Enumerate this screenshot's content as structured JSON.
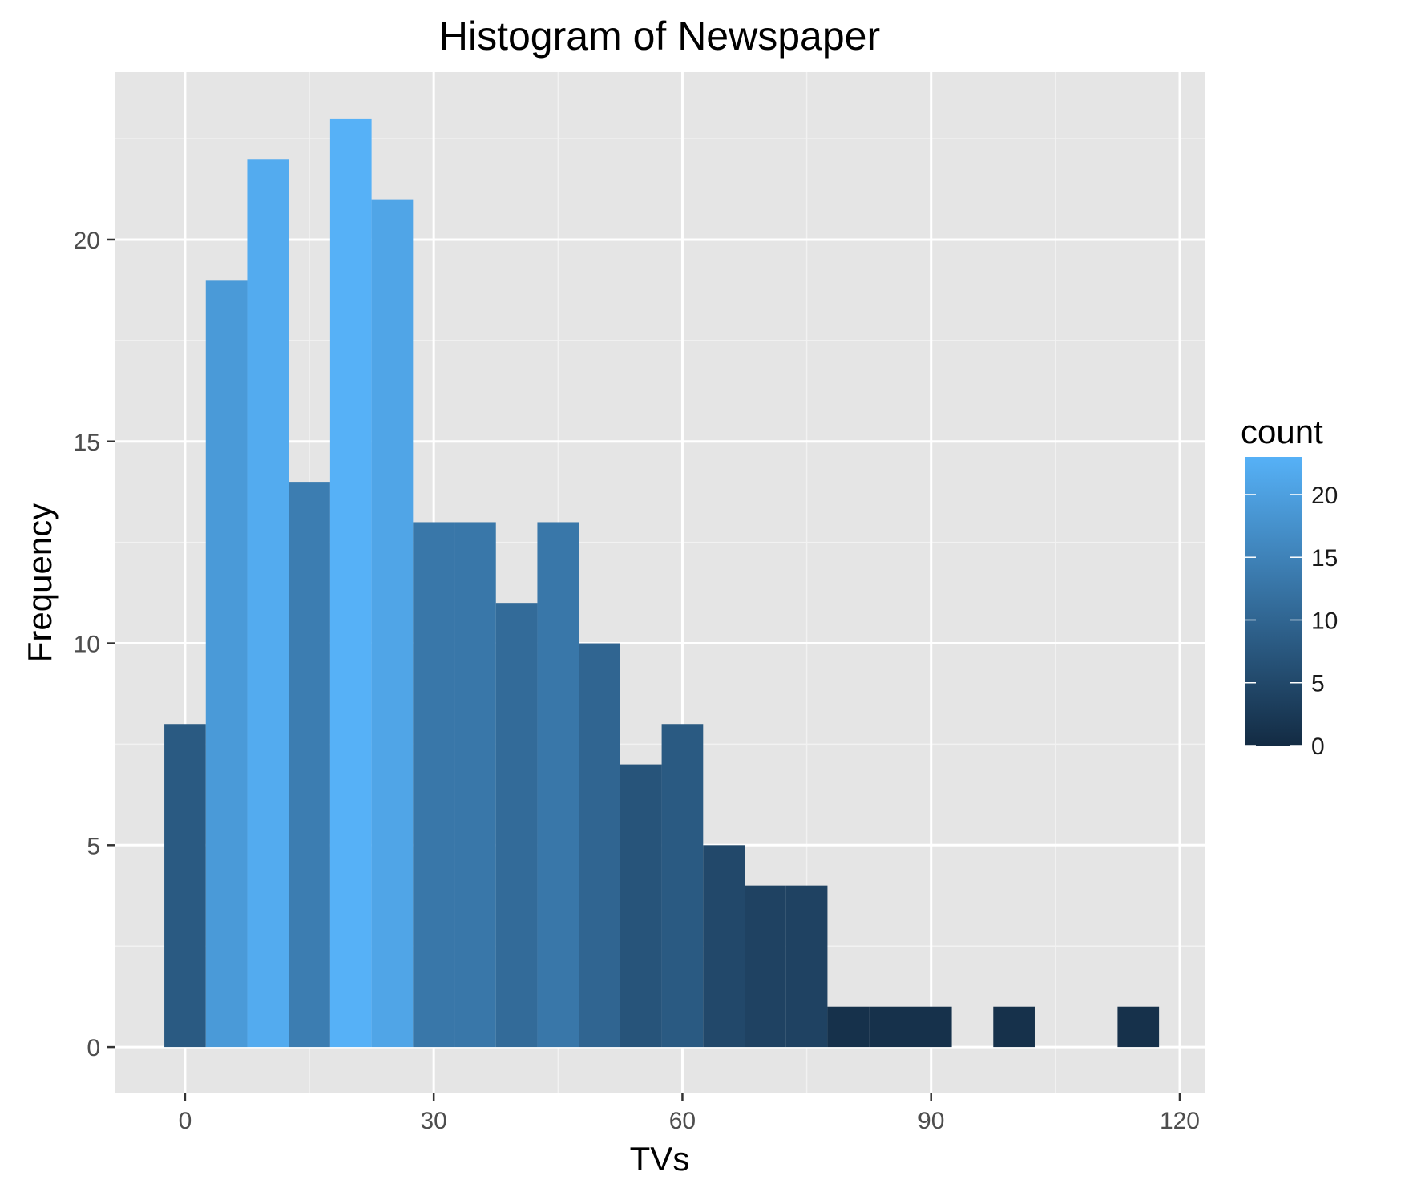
{
  "chart_data": {
    "type": "bar",
    "title": "Histogram of Newspaper",
    "xlabel": "TVs",
    "ylabel": "Frequency",
    "bin_width": 5,
    "bins": [
      {
        "x": 0,
        "count": 8
      },
      {
        "x": 5,
        "count": 19
      },
      {
        "x": 10,
        "count": 22
      },
      {
        "x": 15,
        "count": 14
      },
      {
        "x": 20,
        "count": 23
      },
      {
        "x": 25,
        "count": 21
      },
      {
        "x": 30,
        "count": 13
      },
      {
        "x": 35,
        "count": 13
      },
      {
        "x": 40,
        "count": 11
      },
      {
        "x": 45,
        "count": 13
      },
      {
        "x": 50,
        "count": 10
      },
      {
        "x": 55,
        "count": 7
      },
      {
        "x": 60,
        "count": 8
      },
      {
        "x": 65,
        "count": 5
      },
      {
        "x": 70,
        "count": 4
      },
      {
        "x": 75,
        "count": 4
      },
      {
        "x": 80,
        "count": 1
      },
      {
        "x": 85,
        "count": 1
      },
      {
        "x": 90,
        "count": 1
      },
      {
        "x": 95,
        "count": 0
      },
      {
        "x": 100,
        "count": 1
      },
      {
        "x": 105,
        "count": 0
      },
      {
        "x": 110,
        "count": 0
      },
      {
        "x": 115,
        "count": 1
      }
    ],
    "xlim": [
      -8.5,
      123
    ],
    "ylim": [
      -1.15,
      24.15
    ],
    "x_ticks": [
      0,
      30,
      60,
      90,
      120
    ],
    "y_ticks": [
      0,
      5,
      10,
      15,
      20
    ],
    "grid": true,
    "legend": {
      "title": "count",
      "position": "right",
      "range": [
        0,
        23
      ],
      "ticks": [
        0,
        5,
        10,
        15,
        20
      ],
      "low_color": "#132B43",
      "high_color": "#56B1F7"
    },
    "panel_background": "#E5E5E5"
  }
}
